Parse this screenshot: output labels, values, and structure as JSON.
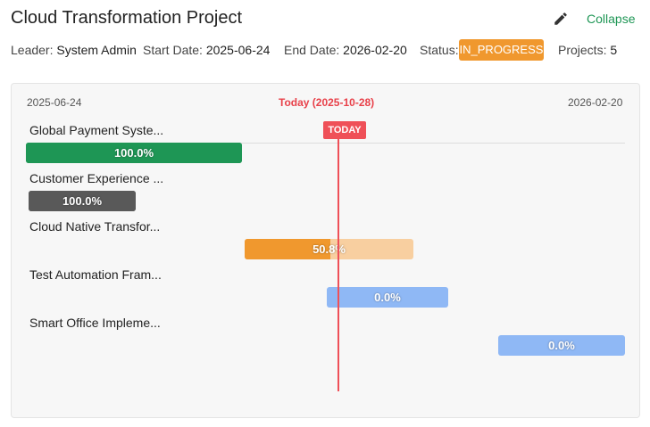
{
  "header": {
    "title": "Cloud Transformation Project",
    "collapse": "Collapse",
    "meta": [
      {
        "label": "Leader:",
        "value": "System Admin"
      },
      {
        "label": "Start Date:",
        "value": "2025-06-24"
      },
      {
        "label": "End Date:",
        "value": "2026-02-20"
      },
      {
        "label": "Status:",
        "value": "IN_PROGRESS"
      },
      {
        "label": "Projects:",
        "value": "5"
      }
    ]
  },
  "timeline": {
    "start": "2025-06-24",
    "today": "Today (2025-10-28)",
    "end": "2026-02-20",
    "today_badge": "TODAY",
    "projects": [
      {
        "name": "Global Payment Syste...",
        "progress": "100.0%"
      },
      {
        "name": "Customer Experience ...",
        "progress": "100.0%"
      },
      {
        "name": "Cloud Native Transfor...",
        "progress": "50.8%"
      },
      {
        "name": "Test Automation Fram...",
        "progress": "0.0%"
      },
      {
        "name": "Smart Office Impleme...",
        "progress": "0.0%"
      }
    ]
  }
}
